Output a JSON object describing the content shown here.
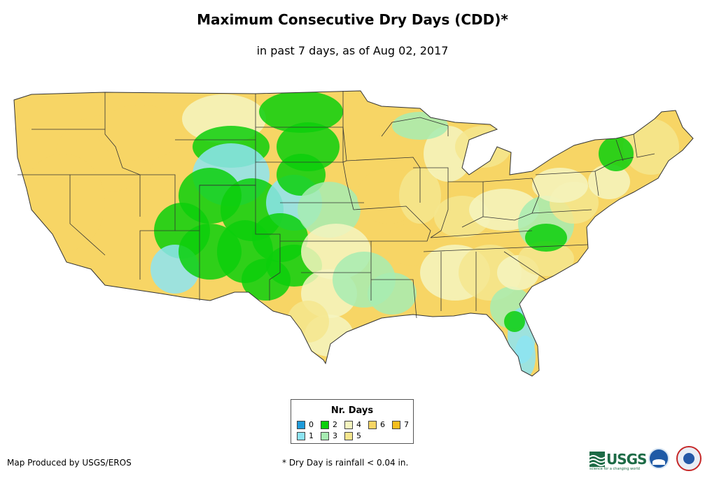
{
  "title": "Maximum Consecutive Dry Days (CDD)*",
  "subtitle": "in past 7 days, as of Aug 02, 2017",
  "legend": {
    "title": "Nr. Days",
    "items": [
      {
        "label": "0",
        "color": "#1f9bd9"
      },
      {
        "label": "1",
        "color": "#8de4f2"
      },
      {
        "label": "2",
        "color": "#0ccf0c"
      },
      {
        "label": "3",
        "color": "#a7ecb2"
      },
      {
        "label": "4",
        "color": "#f5f5bf"
      },
      {
        "label": "5",
        "color": "#f5e68e"
      },
      {
        "label": "6",
        "color": "#f7d565"
      },
      {
        "label": "7",
        "color": "#f5be1f"
      }
    ]
  },
  "credit": "Map Produced by USGS/EROS",
  "note": "* Dry Day is rainfall < 0.04 in.",
  "logos": {
    "usgs": "USGS",
    "usgs_tagline": "science for a changing world",
    "noaa": "noaa",
    "nws": "National Weather Service"
  }
}
